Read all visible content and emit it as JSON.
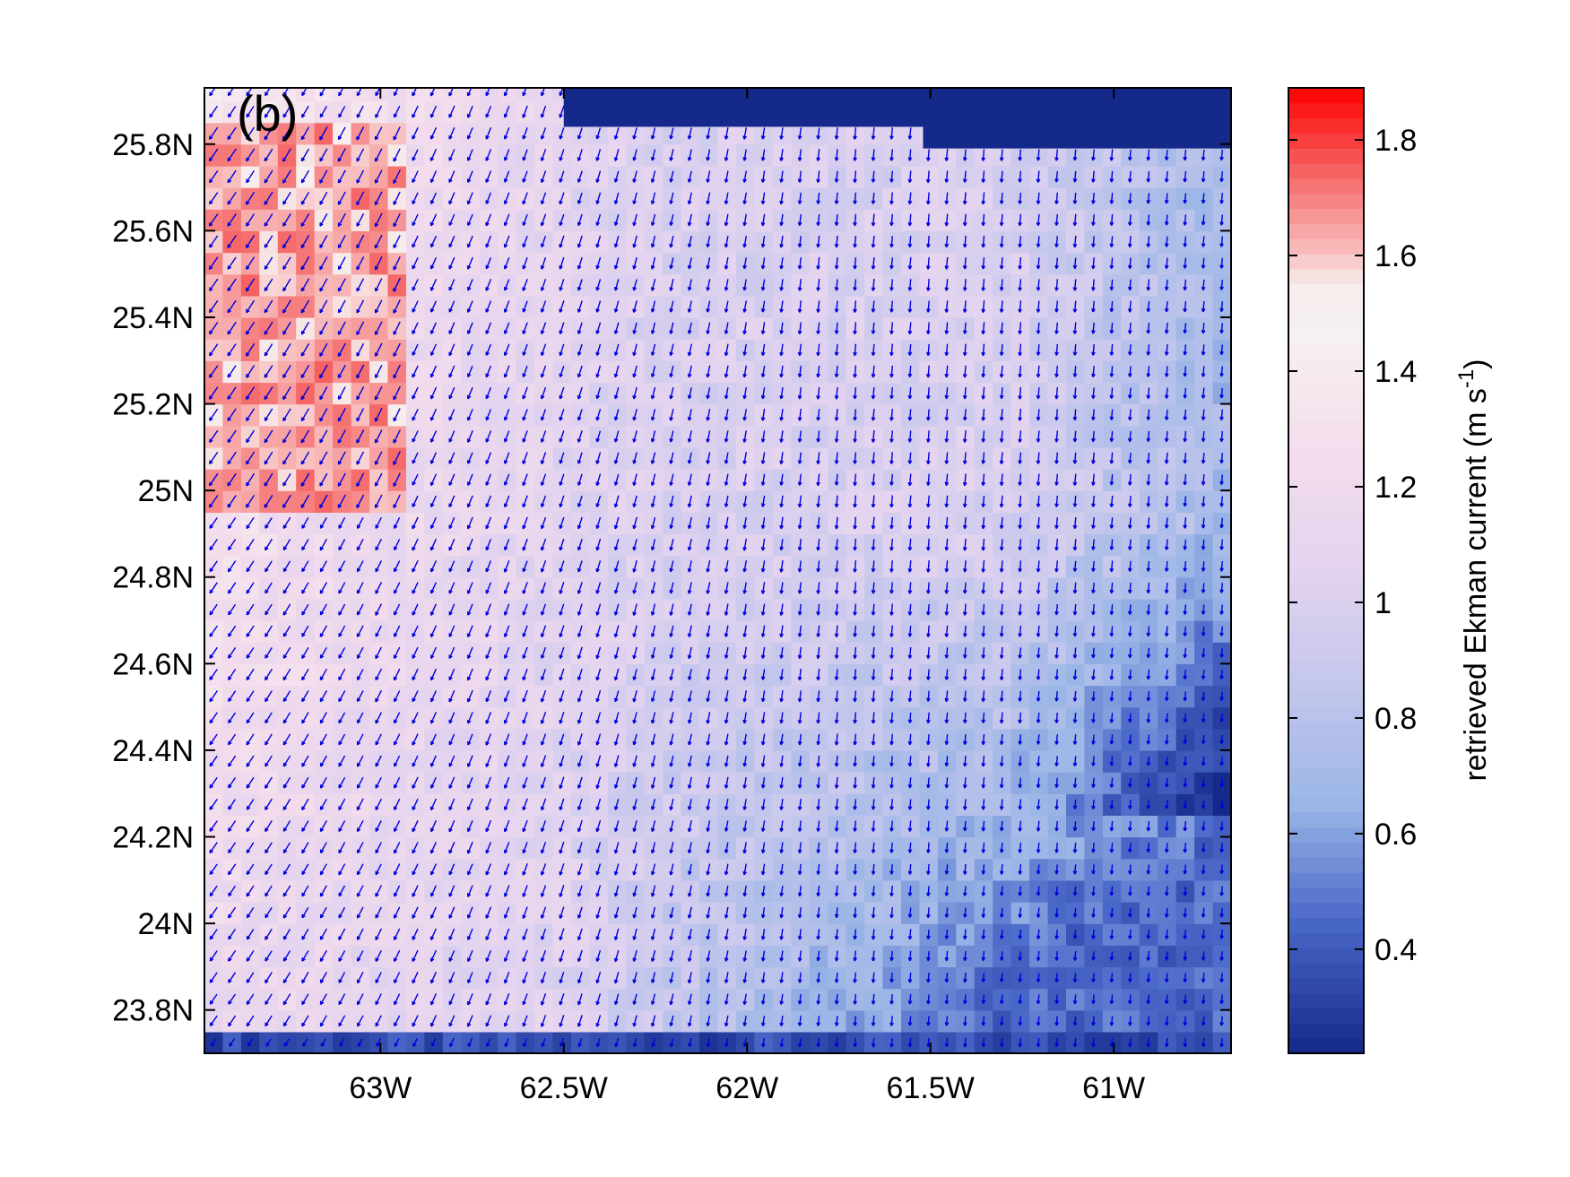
{
  "chart_data": {
    "type": "heatmap",
    "panel_label": "(b)",
    "colorbar_label": "retrieved Ekman current (m s",
    "colorbar_label_superscript": "-1",
    "colorbar_label_close": ")",
    "x_range": [
      -63.48,
      -60.68
    ],
    "y_range": [
      23.7,
      25.93
    ],
    "color_range": [
      0.22,
      1.89
    ],
    "x_ticks": [
      {
        "value": -63.0,
        "label": "63W"
      },
      {
        "value": -62.5,
        "label": "62.5W"
      },
      {
        "value": -62.0,
        "label": "62W"
      },
      {
        "value": -61.5,
        "label": "61.5W"
      },
      {
        "value": -61.0,
        "label": "61W"
      }
    ],
    "y_ticks": [
      {
        "value": 25.8,
        "label": "25.8N"
      },
      {
        "value": 25.6,
        "label": "25.6N"
      },
      {
        "value": 25.4,
        "label": "25.4N"
      },
      {
        "value": 25.2,
        "label": "25.2N"
      },
      {
        "value": 25.0,
        "label": "25N"
      },
      {
        "value": 24.8,
        "label": "24.8N"
      },
      {
        "value": 24.6,
        "label": "24.6N"
      },
      {
        "value": 24.4,
        "label": "24.4N"
      },
      {
        "value": 24.2,
        "label": "24.2N"
      },
      {
        "value": 24.0,
        "label": "24N"
      },
      {
        "value": 23.8,
        "label": "23.8N"
      }
    ],
    "colorbar_ticks": [
      {
        "value": 1.8,
        "label": "1.8"
      },
      {
        "value": 1.6,
        "label": "1.6"
      },
      {
        "value": 1.4,
        "label": "1.4"
      },
      {
        "value": 1.2,
        "label": "1.2"
      },
      {
        "value": 1.0,
        "label": "1"
      },
      {
        "value": 0.8,
        "label": "0.8"
      },
      {
        "value": 0.6,
        "label": "0.6"
      },
      {
        "value": 0.4,
        "label": "0.4"
      }
    ],
    "colormap": [
      {
        "v": 0.22,
        "color": "#14298a"
      },
      {
        "v": 0.45,
        "color": "#4a68c8"
      },
      {
        "v": 0.65,
        "color": "#9bb6e6"
      },
      {
        "v": 0.85,
        "color": "#c3c6ec"
      },
      {
        "v": 1.05,
        "color": "#e2d3ef"
      },
      {
        "v": 1.25,
        "color": "#f3dcec"
      },
      {
        "v": 1.45,
        "color": "#f6f0f0"
      },
      {
        "v": 1.55,
        "color": "#f7eeee"
      },
      {
        "v": 1.6,
        "color": "#f8c3c3"
      },
      {
        "v": 1.75,
        "color": "#f56060"
      },
      {
        "v": 1.89,
        "color": "#ff0000"
      }
    ],
    "grid_resolution_deg": [
      0.05,
      0.05
    ],
    "field_description": {
      "high_zones": [
        {
          "lon_range": [
            -63.48,
            -62.95
          ],
          "lat_range": [
            24.95,
            25.85
          ],
          "value": 1.75
        },
        {
          "lon_range": [
            -63.3,
            -62.95
          ],
          "lat_range": [
            25.55,
            25.85
          ],
          "value": 1.7
        }
      ],
      "background_north_west": 1.4,
      "background_center": 1.0,
      "south_east_low": 0.45,
      "no_data_mask": [
        {
          "lon_range": [
            -62.5,
            -61.52
          ],
          "lat_range": [
            25.84,
            25.93
          ]
        },
        {
          "lon_range": [
            -61.52,
            -60.68
          ],
          "lat_range": [
            25.79,
            25.93
          ]
        }
      ],
      "no_data_color": "#14298a"
    },
    "vector_field": {
      "type": "quiver",
      "color": "#0000dd",
      "spacing_deg": [
        0.05,
        0.05
      ],
      "direction": "toward southwest in the west, turning southward to the east",
      "west_angle_deg": -125,
      "east_angle_deg": -95
    }
  }
}
